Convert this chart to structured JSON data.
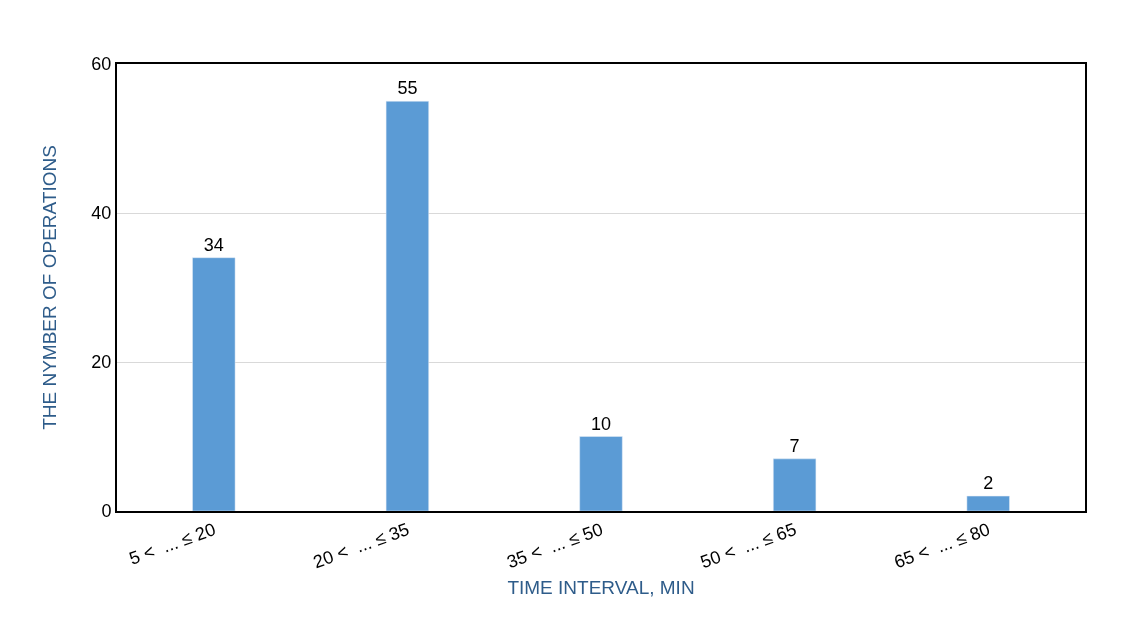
{
  "chart_data": {
    "type": "bar",
    "xlabel": "TIME INTERVAL, MIN",
    "ylabel": "THE NYMBER OF OPERATIONS",
    "categories": [
      "5 <  ... ≤ 20",
      "20 <  ... ≤ 35",
      "35 <  ... ≤ 50",
      "50 <  ... ≤ 65",
      "65 <  ... ≤ 80"
    ],
    "values": [
      34,
      55,
      10,
      7,
      2
    ],
    "color": "#5b9bd5",
    "ylim": [
      0,
      60
    ],
    "yticks": [
      0,
      20,
      40,
      60
    ],
    "grid": "y",
    "data_labels": true
  }
}
